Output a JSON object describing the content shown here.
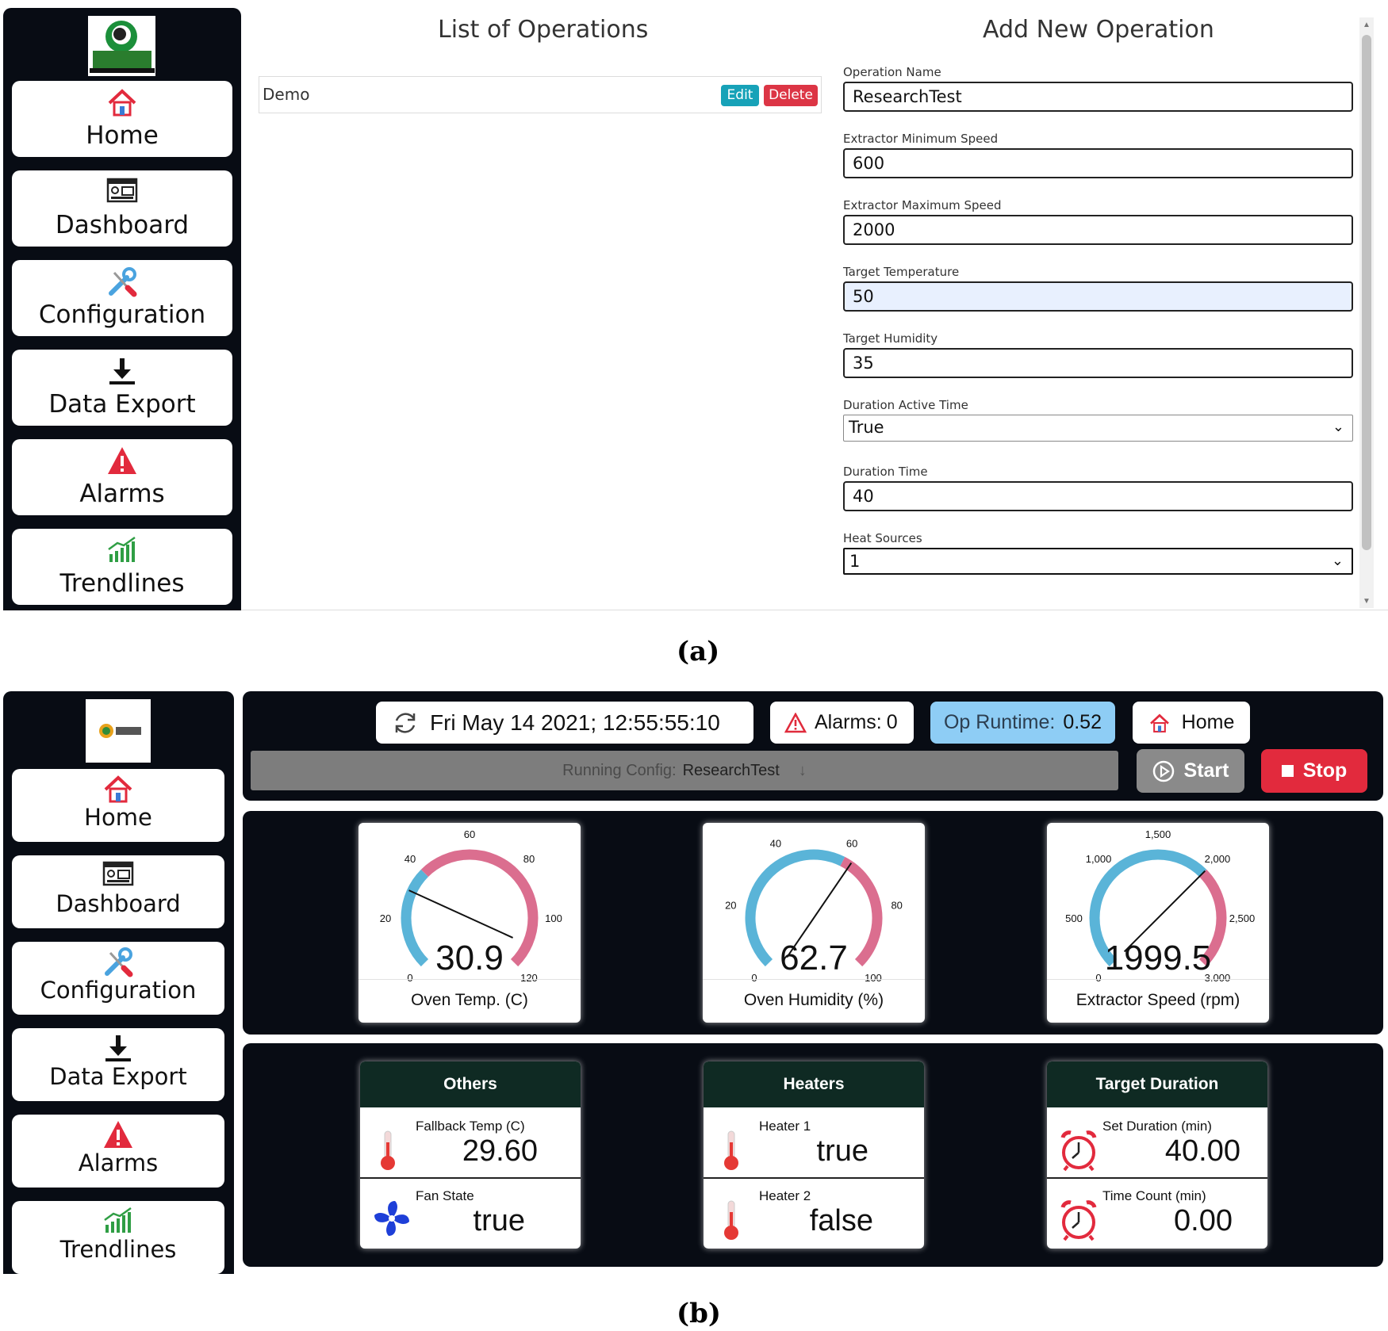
{
  "panel_a": {
    "nav": [
      {
        "label": "Home",
        "icon": "home-icon"
      },
      {
        "label": "Dashboard",
        "icon": "dashboard-icon"
      },
      {
        "label": "Configuration",
        "icon": "wrench-screwdriver-icon"
      },
      {
        "label": "Data Export",
        "icon": "download-icon"
      },
      {
        "label": "Alarms",
        "icon": "warning-icon"
      },
      {
        "label": "Trendlines",
        "icon": "bar-chart-icon"
      }
    ],
    "list_title": "List of Operations",
    "operations": [
      {
        "name": "Demo",
        "edit": "Edit",
        "delete": "Delete"
      }
    ],
    "form_title": "Add New Operation",
    "fields": [
      {
        "label": "Operation Name",
        "value": "ResearchTest"
      },
      {
        "label": "Extractor Minimum Speed",
        "value": "600"
      },
      {
        "label": "Extractor Maximum Speed",
        "value": "2000"
      },
      {
        "label": "Target Temperature",
        "value": "50"
      },
      {
        "label": "Target Humidity",
        "value": "35"
      },
      {
        "label": "Duration Active Time",
        "value": "True"
      },
      {
        "label": "Duration Time",
        "value": "40"
      },
      {
        "label": "Heat Sources",
        "value": "1"
      }
    ],
    "caption": "(a)"
  },
  "panel_b": {
    "nav": [
      {
        "label": "Home",
        "icon": "home-icon"
      },
      {
        "label": "Dashboard",
        "icon": "dashboard-icon"
      },
      {
        "label": "Configuration",
        "icon": "wrench-screwdriver-icon"
      },
      {
        "label": "Data Export",
        "icon": "download-icon"
      },
      {
        "label": "Alarms",
        "icon": "warning-icon"
      },
      {
        "label": "Trendlines",
        "icon": "bar-chart-icon"
      }
    ],
    "header": {
      "datetime": "Fri May 14 2021; 12:55:55:10",
      "alarms_label": "Alarms:",
      "alarms_value": "0",
      "runtime_label": "Op Runtime:",
      "runtime_value": "0.52",
      "home_label": "Home",
      "running_label": "Running Config:",
      "running_value": "ResearchTest",
      "start_label": "Start",
      "stop_label": "Stop"
    },
    "gauges": [
      {
        "label": "Oven Temp. (C)",
        "value": "30.9",
        "value_num": 30.9,
        "min": 0,
        "max": 120,
        "ticks": [
          "0",
          "20",
          "40",
          "60",
          "80",
          "100",
          "120"
        ],
        "zones": [
          {
            "from": 0,
            "to": 40,
            "color": "#5ab4d8"
          },
          {
            "from": 40,
            "to": 120,
            "color": "#db6e8f"
          }
        ]
      },
      {
        "label": "Oven Humidity (%)",
        "value": "62.7",
        "value_num": 62.7,
        "min": 0,
        "max": 100,
        "ticks": [
          "0",
          "20",
          "40",
          "60",
          "80",
          "100"
        ],
        "zones": [
          {
            "from": 0,
            "to": 60,
            "color": "#5ab4d8"
          },
          {
            "from": 60,
            "to": 100,
            "color": "#db6e8f"
          }
        ]
      },
      {
        "label": "Extractor Speed (rpm)",
        "value": "1999.5",
        "value_num": 1999.5,
        "min": 0,
        "max": 3000,
        "ticks": [
          "0",
          "500",
          "1,000",
          "1,500",
          "2,000",
          "2,500",
          "3,000"
        ],
        "zones": [
          {
            "from": 0,
            "to": 2000,
            "color": "#5ab4d8"
          },
          {
            "from": 2000,
            "to": 3000,
            "color": "#db6e8f"
          }
        ]
      }
    ],
    "cards": [
      {
        "title": "Others",
        "row1_label": "Fallback Temp (C)",
        "row1_value": "29.60",
        "row1_icon": "thermometer-icon",
        "row2_label": "Fan State",
        "row2_value": "true",
        "row2_icon": "fan-icon"
      },
      {
        "title": "Heaters",
        "row1_label": "Heater 1",
        "row1_value": "true",
        "row1_icon": "thermometer-icon",
        "row2_label": "Heater 2",
        "row2_value": "false",
        "row2_icon": "thermometer-icon"
      },
      {
        "title": "Target Duration",
        "row1_label": "Set Duration (min)",
        "row1_value": "40.00",
        "row1_icon": "alarm-clock-icon",
        "row2_label": "Time Count (min)",
        "row2_value": "0.00",
        "row2_icon": "alarm-clock-icon"
      }
    ],
    "caption": "(b)"
  },
  "colors": {
    "sidebar": "#080c14",
    "edit": "#17a2b8",
    "delete": "#dc3545",
    "runtime": "#8ecdf5",
    "stop": "#e22a3d",
    "start": "#8a8a8a",
    "card_header": "#0f2a23",
    "gauge_blue": "#5ab4d8",
    "gauge_pink": "#db6e8f"
  }
}
